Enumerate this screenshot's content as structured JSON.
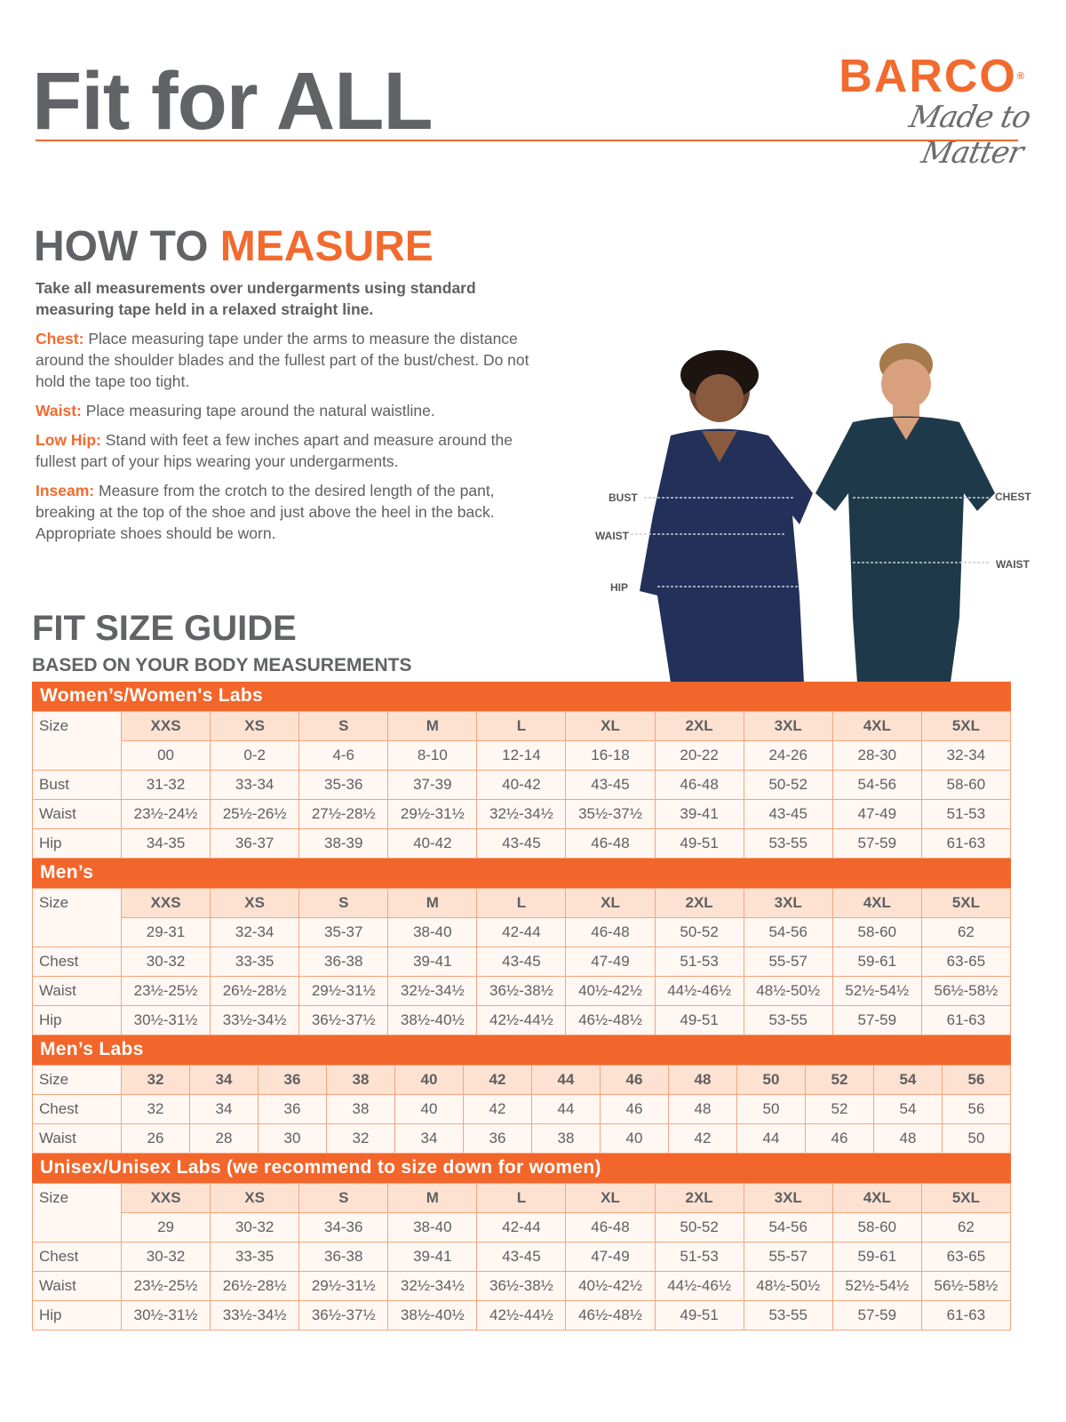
{
  "header": {
    "title_part1": "Fit for",
    "title_part2": "ALL",
    "brand": "BARCO",
    "registered": "®",
    "tagline": "Made to Matter"
  },
  "measure": {
    "title_part1": "HOW TO",
    "title_part2": "MEASURE",
    "lead": "Take all measurements over undergarments using standard measuring tape held in a relaxed straight line.",
    "items": [
      {
        "label": "Chest:",
        "text": "Place measuring tape under the arms to measure the distance around the shoulder blades and the fullest part of the bust/chest. Do not hold the tape too tight."
      },
      {
        "label": "Waist:",
        "text": "Place measuring tape around the natural waistline."
      },
      {
        "label": "Low Hip:",
        "text": "Stand with feet a few inches apart and measure around the fullest part of your hips wearing your undergarments."
      },
      {
        "label": "Inseam:",
        "text": "Measure from the crotch to the desired length of the pant, breaking at the top of the shoe and just above the heel in the back. Appropriate shoes should be worn."
      }
    ]
  },
  "photo_labels": {
    "bust": "BUST",
    "waist_w": "WAIST",
    "hip": "HIP",
    "chest": "CHEST",
    "waist_m": "WAIST"
  },
  "guide": {
    "title": "FIT SIZE GUIDE",
    "subtitle": "BASED ON YOUR BODY MEASUREMENTS"
  },
  "colors": {
    "accent": "#f2662b",
    "text": "#626366",
    "size_cell": "#fde2d2",
    "cell": "#fff7f2"
  },
  "tables": [
    {
      "title": "Women’s/Women's Labs",
      "size_label": "Size",
      "sizes": [
        "XXS",
        "XS",
        "S",
        "M",
        "L",
        "XL",
        "2XL",
        "3XL",
        "4XL",
        "5XL"
      ],
      "numeric": [
        "00",
        "0-2",
        "4-6",
        "8-10",
        "12-14",
        "16-18",
        "20-22",
        "24-26",
        "28-30",
        "32-34"
      ],
      "rows": [
        {
          "label": "Bust",
          "values": [
            "31-32",
            "33-34",
            "35-36",
            "37-39",
            "40-42",
            "43-45",
            "46-48",
            "50-52",
            "54-56",
            "58-60"
          ]
        },
        {
          "label": "Waist",
          "values": [
            "23½-24½",
            "25½-26½",
            "27½-28½",
            "29½-31½",
            "32½-34½",
            "35½-37½",
            "39-41",
            "43-45",
            "47-49",
            "51-53"
          ]
        },
        {
          "label": "Hip",
          "values": [
            "34-35",
            "36-37",
            "38-39",
            "40-42",
            "43-45",
            "46-48",
            "49-51",
            "53-55",
            "57-59",
            "61-63"
          ]
        }
      ]
    },
    {
      "title": "Men’s",
      "size_label": "Size",
      "sizes": [
        "XXS",
        "XS",
        "S",
        "M",
        "L",
        "XL",
        "2XL",
        "3XL",
        "4XL",
        "5XL"
      ],
      "numeric": [
        "29-31",
        "32-34",
        "35-37",
        "38-40",
        "42-44",
        "46-48",
        "50-52",
        "54-56",
        "58-60",
        "62"
      ],
      "rows": [
        {
          "label": "Chest",
          "values": [
            "30-32",
            "33-35",
            "36-38",
            "39-41",
            "43-45",
            "47-49",
            "51-53",
            "55-57",
            "59-61",
            "63-65"
          ]
        },
        {
          "label": "Waist",
          "values": [
            "23½-25½",
            "26½-28½",
            "29½-31½",
            "32½-34½",
            "36½-38½",
            "40½-42½",
            "44½-46½",
            "48½-50½",
            "52½-54½",
            "56½-58½"
          ]
        },
        {
          "label": "Hip",
          "values": [
            "30½-31½",
            "33½-34½",
            "36½-37½",
            "38½-40½",
            "42½-44½",
            "46½-48½",
            "49-51",
            "53-55",
            "57-59",
            "61-63"
          ]
        }
      ]
    },
    {
      "title": "Men’s Labs",
      "size_label": "Size",
      "sizes": [
        "32",
        "34",
        "36",
        "38",
        "40",
        "42",
        "44",
        "46",
        "48",
        "50",
        "52",
        "54",
        "56"
      ],
      "rows": [
        {
          "label": "Chest",
          "values": [
            "32",
            "34",
            "36",
            "38",
            "40",
            "42",
            "44",
            "46",
            "48",
            "50",
            "52",
            "54",
            "56"
          ]
        },
        {
          "label": "Waist",
          "values": [
            "26",
            "28",
            "30",
            "32",
            "34",
            "36",
            "38",
            "40",
            "42",
            "44",
            "46",
            "48",
            "50"
          ]
        }
      ]
    },
    {
      "title": "Unisex/Unisex Labs (we recommend to size down for women)",
      "size_label": "Size",
      "sizes": [
        "XXS",
        "XS",
        "S",
        "M",
        "L",
        "XL",
        "2XL",
        "3XL",
        "4XL",
        "5XL"
      ],
      "numeric": [
        "29",
        "30-32",
        "34-36",
        "38-40",
        "42-44",
        "46-48",
        "50-52",
        "54-56",
        "58-60",
        "62"
      ],
      "rows": [
        {
          "label": "Chest",
          "values": [
            "30-32",
            "33-35",
            "36-38",
            "39-41",
            "43-45",
            "47-49",
            "51-53",
            "55-57",
            "59-61",
            "63-65"
          ]
        },
        {
          "label": "Waist",
          "values": [
            "23½-25½",
            "26½-28½",
            "29½-31½",
            "32½-34½",
            "36½-38½",
            "40½-42½",
            "44½-46½",
            "48½-50½",
            "52½-54½",
            "56½-58½"
          ]
        },
        {
          "label": "Hip",
          "values": [
            "30½-31½",
            "33½-34½",
            "36½-37½",
            "38½-40½",
            "42½-44½",
            "46½-48½",
            "49-51",
            "53-55",
            "57-59",
            "61-63"
          ]
        }
      ]
    }
  ]
}
